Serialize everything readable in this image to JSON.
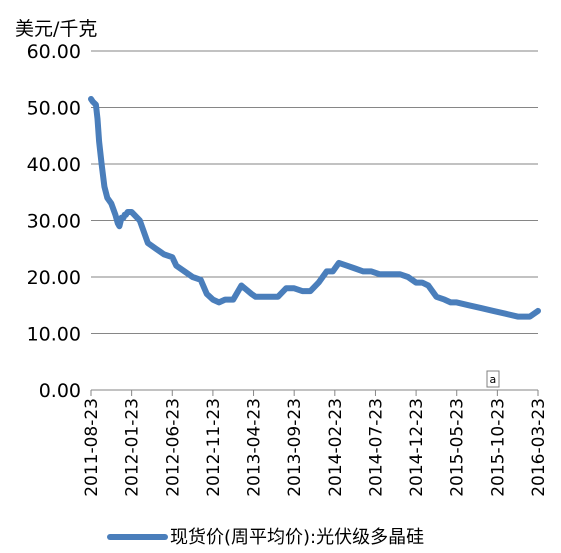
{
  "chart_data": {
    "type": "line",
    "ylabel": "美元/千克",
    "ylim": [
      0,
      60
    ],
    "yticks": [
      "0.00",
      "10.00",
      "20.00",
      "30.00",
      "40.00",
      "50.00",
      "60.00"
    ],
    "xticks": [
      "2011-08-23",
      "2012-01-23",
      "2012-06-23",
      "2012-11-23",
      "2013-04-23",
      "2013-09-23",
      "2014-02-23",
      "2014-07-23",
      "2014-12-23",
      "2015-05-23",
      "2015-10-23",
      "2016-03-23"
    ],
    "grid": "horizontal",
    "legend_position": "bottom",
    "annotation": "a",
    "series": [
      {
        "name": "现货价(周平均价):光伏级多晶硅",
        "color": "#4a7ebb",
        "x": [
          0,
          0.05,
          0.12,
          0.16,
          0.2,
          0.26,
          0.33,
          0.4,
          0.5,
          0.6,
          0.66,
          0.7,
          0.75,
          0.8,
          0.83,
          0.86,
          0.9,
          1.0,
          1.2,
          1.4,
          1.6,
          1.7,
          1.8,
          2.0,
          2.1,
          2.3,
          2.5,
          2.7,
          2.85,
          3.0,
          3.15,
          3.3,
          3.5,
          3.7,
          3.95,
          4.05,
          4.2,
          4.4,
          4.6,
          4.8,
          5.0,
          5.2,
          5.4,
          5.6,
          5.8,
          5.95,
          6.1,
          6.3,
          6.5,
          6.7,
          6.9,
          7.1,
          7.3,
          7.45,
          7.6,
          7.8,
          8.0,
          8.15,
          8.3,
          8.5,
          8.7,
          8.85,
          9.0,
          9.3,
          9.6,
          9.9,
          10.2,
          10.5,
          10.8,
          11.0
        ],
        "values": [
          51.5,
          51.0,
          50.5,
          48.0,
          44.0,
          40.0,
          36.0,
          34.0,
          33.0,
          31.0,
          29.5,
          29.0,
          30.5,
          30.5,
          31.0,
          31.0,
          31.5,
          31.5,
          30.0,
          26.0,
          25.0,
          24.5,
          24.0,
          23.5,
          22.0,
          21.0,
          20.0,
          19.5,
          17.0,
          16.0,
          15.5,
          16.0,
          16.0,
          18.5,
          17.0,
          16.5,
          16.5,
          16.5,
          16.5,
          18.0,
          18.0,
          17.5,
          17.5,
          19.0,
          21.0,
          21.0,
          22.5,
          22.0,
          21.5,
          21.0,
          21.0,
          20.5,
          20.5,
          20.5,
          20.5,
          20.0,
          19.0,
          19.0,
          18.5,
          16.5,
          16.0,
          15.5,
          15.5,
          15.0,
          14.5,
          14.0,
          13.5,
          13.0,
          13.0,
          14.0
        ]
      }
    ]
  }
}
